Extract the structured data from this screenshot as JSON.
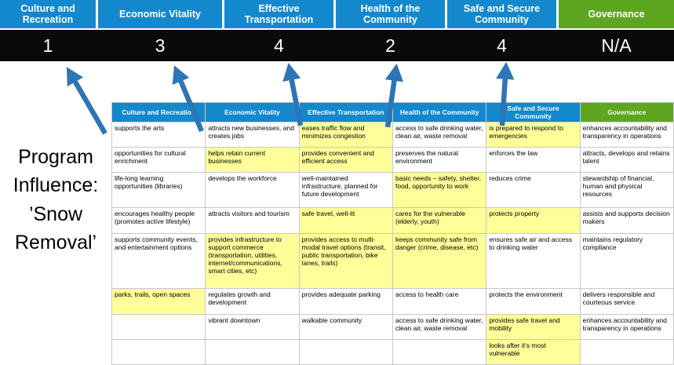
{
  "colors": {
    "pillar_blue": "#1488CC",
    "pillar_green": "#5EA620",
    "score_band_bg": "#0A0A0A",
    "highlight_yellow": "#FFFF99",
    "arrow_blue": "#2E75B6",
    "grid_border": "#C8C8C8"
  },
  "top_band": {
    "items": [
      "Culture and Recreation",
      "Economic Vitality",
      "Effective Transportation",
      "Health of the Community",
      "Safe and Secure Community",
      "Governance"
    ]
  },
  "score_band": {
    "values": [
      "1",
      "3",
      "4",
      "2",
      "4",
      "N/A"
    ]
  },
  "title": {
    "lines": [
      "Program",
      "Influence:",
      "’Snow",
      "Removal’"
    ]
  },
  "matrix": {
    "headers": [
      "Culture and Recreation",
      "Economic Vitality",
      "Effective Transportation",
      "Health of the Community",
      "Safe and Secure Community",
      "Governance"
    ],
    "rows": [
      [
        {
          "t": "supports the arts",
          "h": false
        },
        {
          "t": "attracts new businesses, and creates jobs",
          "h": false
        },
        {
          "t": "eases traffic flow and minimizes congestion",
          "h": true
        },
        {
          "t": "access to safe drinking water, clean air, waste removal",
          "h": false
        },
        {
          "t": "is prepared to respond to emergencies",
          "h": true
        },
        {
          "t": "enhances accountability and transparency in operations",
          "h": false
        }
      ],
      [
        {
          "t": "opportunities for cultural enrichment",
          "h": false
        },
        {
          "t": "helps retain current businesses",
          "h": true
        },
        {
          "t": "provides convenient and efficient access",
          "h": true
        },
        {
          "t": "preserves the natural environment",
          "h": false
        },
        {
          "t": "enforces the law",
          "h": false
        },
        {
          "t": "attracts, develops and retains talent",
          "h": false
        }
      ],
      [
        {
          "t": "life-long learning opportunities (libraries)",
          "h": false
        },
        {
          "t": "develops the workforce",
          "h": false
        },
        {
          "t": "well-maintained infrastructure, planned for future development",
          "h": false
        },
        {
          "t": "basic needs – safety, shelter, food, opportunity to work",
          "h": true
        },
        {
          "t": "reduces crime",
          "h": false
        },
        {
          "t": "stewardship of financial, human and physical resources",
          "h": false
        }
      ],
      [
        {
          "t": "encourages healthy people (promotes active lifestyle)",
          "h": false
        },
        {
          "t": "attracts visitors and tourism",
          "h": false
        },
        {
          "t": "safe travel, well-lit",
          "h": true
        },
        {
          "t": "cares for the vulnerable (elderly, youth)",
          "h": true
        },
        {
          "t": "protects property",
          "h": true
        },
        {
          "t": "assists and supports decision makers",
          "h": false
        }
      ],
      [
        {
          "t": "supports community events, and entertainment options",
          "h": false
        },
        {
          "t": "provides infrastructure to support commerce (transportation, utilities, internet/communications, smart cities, etc)",
          "h": true
        },
        {
          "t": "provides access to multi-modal travel options (transit, public transportation, bike lanes, trails)",
          "h": true
        },
        {
          "t": "keeps community safe from danger (crime, disease, etc)",
          "h": true
        },
        {
          "t": "ensures safe air and access to drinking water",
          "h": false
        },
        {
          "t": "maintains regulatory compliance",
          "h": false
        }
      ],
      [
        {
          "t": "parks, trails, open spaces",
          "h": true
        },
        {
          "t": "regulates growth and development",
          "h": false
        },
        {
          "t": "provides adequate parking",
          "h": false
        },
        {
          "t": "access to health care",
          "h": false
        },
        {
          "t": "protects the environment",
          "h": false
        },
        {
          "t": "delivers responsible and courteous service",
          "h": false
        }
      ],
      [
        {
          "t": "",
          "h": false
        },
        {
          "t": "vibrant downtown",
          "h": false
        },
        {
          "t": "walkable community",
          "h": false
        },
        {
          "t": "access to safe drinking water, clean air, waste removal",
          "h": false
        },
        {
          "t": "provides safe travel and mobility",
          "h": true
        },
        {
          "t": "enhances accountability and transparency in operations",
          "h": false
        }
      ],
      [
        {
          "t": "",
          "h": false
        },
        {
          "t": "",
          "h": false
        },
        {
          "t": "",
          "h": false
        },
        {
          "t": "",
          "h": false
        },
        {
          "t": "looks after it's most vulnerable",
          "h": true
        },
        {
          "t": "",
          "h": false
        }
      ]
    ]
  }
}
